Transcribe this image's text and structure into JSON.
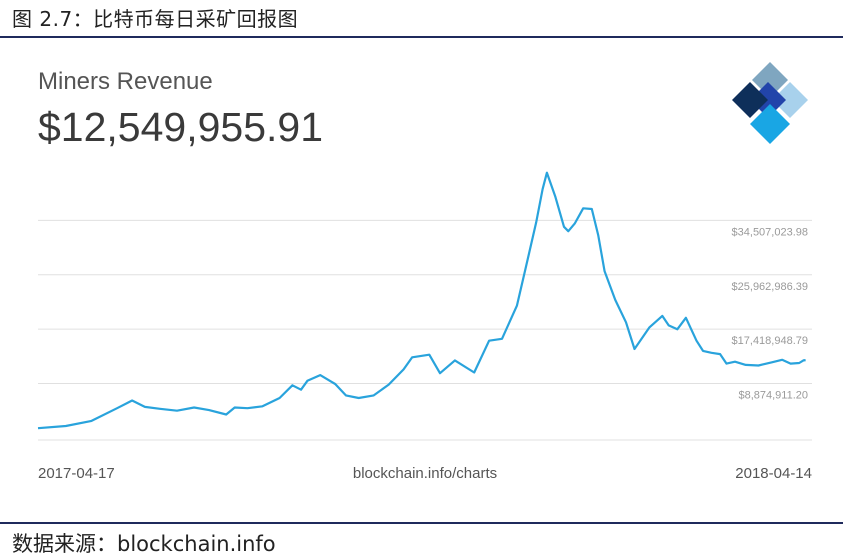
{
  "figure_caption": "图 2.7：比特币每日采矿回报图",
  "source_note": "数据来源：blockchain.info",
  "colors": {
    "line": "#29a3dc",
    "grid": "#e0e0e0",
    "rule": "#1f2a5c"
  },
  "logo": {
    "icon": "blockchain-logo-icon"
  },
  "chart_data": {
    "type": "line",
    "title": "Miners Revenue",
    "headline_value": "$12,549,955.91",
    "source_label": "blockchain.info/charts",
    "x_start_label": "2017-04-17",
    "x_end_label": "2018-04-14",
    "x_start": "2017-04-17",
    "x_end": "2018-04-14",
    "ylim": [
      0,
      43051061
    ],
    "y_ticks": [
      8874911.2,
      17418948.79,
      25962986.39,
      34507023.98
    ],
    "y_tick_labels": [
      "$8,874,911.20",
      "$17,418,948.79",
      "$25,962,986.39",
      "$34,507,023.98"
    ],
    "grid": true,
    "legend": "none",
    "series": [
      {
        "x": [
          "2017-04-17",
          "2017-04-30",
          "2017-05-12",
          "2017-05-24",
          "2017-05-31",
          "2017-06-06",
          "2017-06-13",
          "2017-06-21",
          "2017-06-29",
          "2017-07-06",
          "2017-07-14",
          "2017-07-18",
          "2017-07-24",
          "2017-07-31",
          "2017-08-08",
          "2017-08-14",
          "2017-08-18",
          "2017-08-21",
          "2017-08-27",
          "2017-09-03",
          "2017-09-08",
          "2017-09-14",
          "2017-09-21",
          "2017-09-28",
          "2017-10-05",
          "2017-10-09",
          "2017-10-17",
          "2017-10-22",
          "2017-10-29",
          "2017-11-07",
          "2017-11-14",
          "2017-11-20",
          "2017-11-27",
          "2017-12-01",
          "2017-12-06",
          "2017-12-09",
          "2017-12-11",
          "2017-12-15",
          "2017-12-19",
          "2017-12-21",
          "2017-12-24",
          "2017-12-28",
          "2018-01-01",
          "2018-01-04",
          "2018-01-07",
          "2018-01-12",
          "2018-01-17",
          "2018-01-21",
          "2018-01-28",
          "2018-02-03",
          "2018-02-06",
          "2018-02-10",
          "2018-02-14",
          "2018-02-19",
          "2018-02-22",
          "2018-02-26",
          "2018-03-02",
          "2018-03-05",
          "2018-03-09",
          "2018-03-14",
          "2018-03-20",
          "2018-03-26",
          "2018-03-31",
          "2018-04-04",
          "2018-04-08",
          "2018-04-10",
          "2018-04-11"
        ],
        "values": [
          1850000,
          2200000,
          3000000,
          5000000,
          6200000,
          5200000,
          4900000,
          4600000,
          5100000,
          4700000,
          4000000,
          5100000,
          5000000,
          5300000,
          6600000,
          8600000,
          7900000,
          9300000,
          10200000,
          8800000,
          7000000,
          6600000,
          7000000,
          8700000,
          11100000,
          13000000,
          13400000,
          10500000,
          12500000,
          10600000,
          15600000,
          15900000,
          21100000,
          26900000,
          34200000,
          39400000,
          42000000,
          38200000,
          33500000,
          32800000,
          34000000,
          36400000,
          36300000,
          32200000,
          26500000,
          22000000,
          18500000,
          14300000,
          17700000,
          19500000,
          18000000,
          17400000,
          19200000,
          15600000,
          14000000,
          13700000,
          13500000,
          12000000,
          12300000,
          11800000,
          11700000,
          12200000,
          12600000,
          12000000,
          12100000,
          12500000,
          12549955.91
        ]
      }
    ]
  }
}
